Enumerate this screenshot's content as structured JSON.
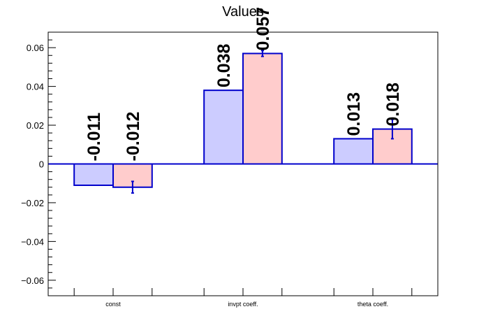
{
  "chart_data": {
    "type": "bar",
    "title": "Values",
    "categories": [
      "const",
      "invpt coeff.",
      "theta coeff."
    ],
    "ylim": [
      -0.068,
      0.068
    ],
    "yticks": [
      -0.06,
      -0.04,
      -0.02,
      0,
      0.02,
      0.04,
      0.06
    ],
    "ytick_labels": [
      "−0.06",
      "−0.04",
      "−0.02",
      "0",
      "0.02",
      "0.04",
      "0.06"
    ],
    "grid": false,
    "series": [
      {
        "color": "#ccccff",
        "edge_color": "#0000cc",
        "values": [
          -0.011,
          0.038,
          0.013
        ],
        "labels": [
          "-0.011",
          "0.038",
          "0.013"
        ],
        "errors": [
          0,
          0,
          0
        ]
      },
      {
        "color": "#ffcccc",
        "edge_color": "#0000cc",
        "values": [
          -0.012,
          0.057,
          0.018
        ],
        "labels": [
          "-0.012",
          "0.057",
          "0.018"
        ],
        "errors": [
          0.003,
          0.0015,
          0.005
        ]
      }
    ]
  }
}
